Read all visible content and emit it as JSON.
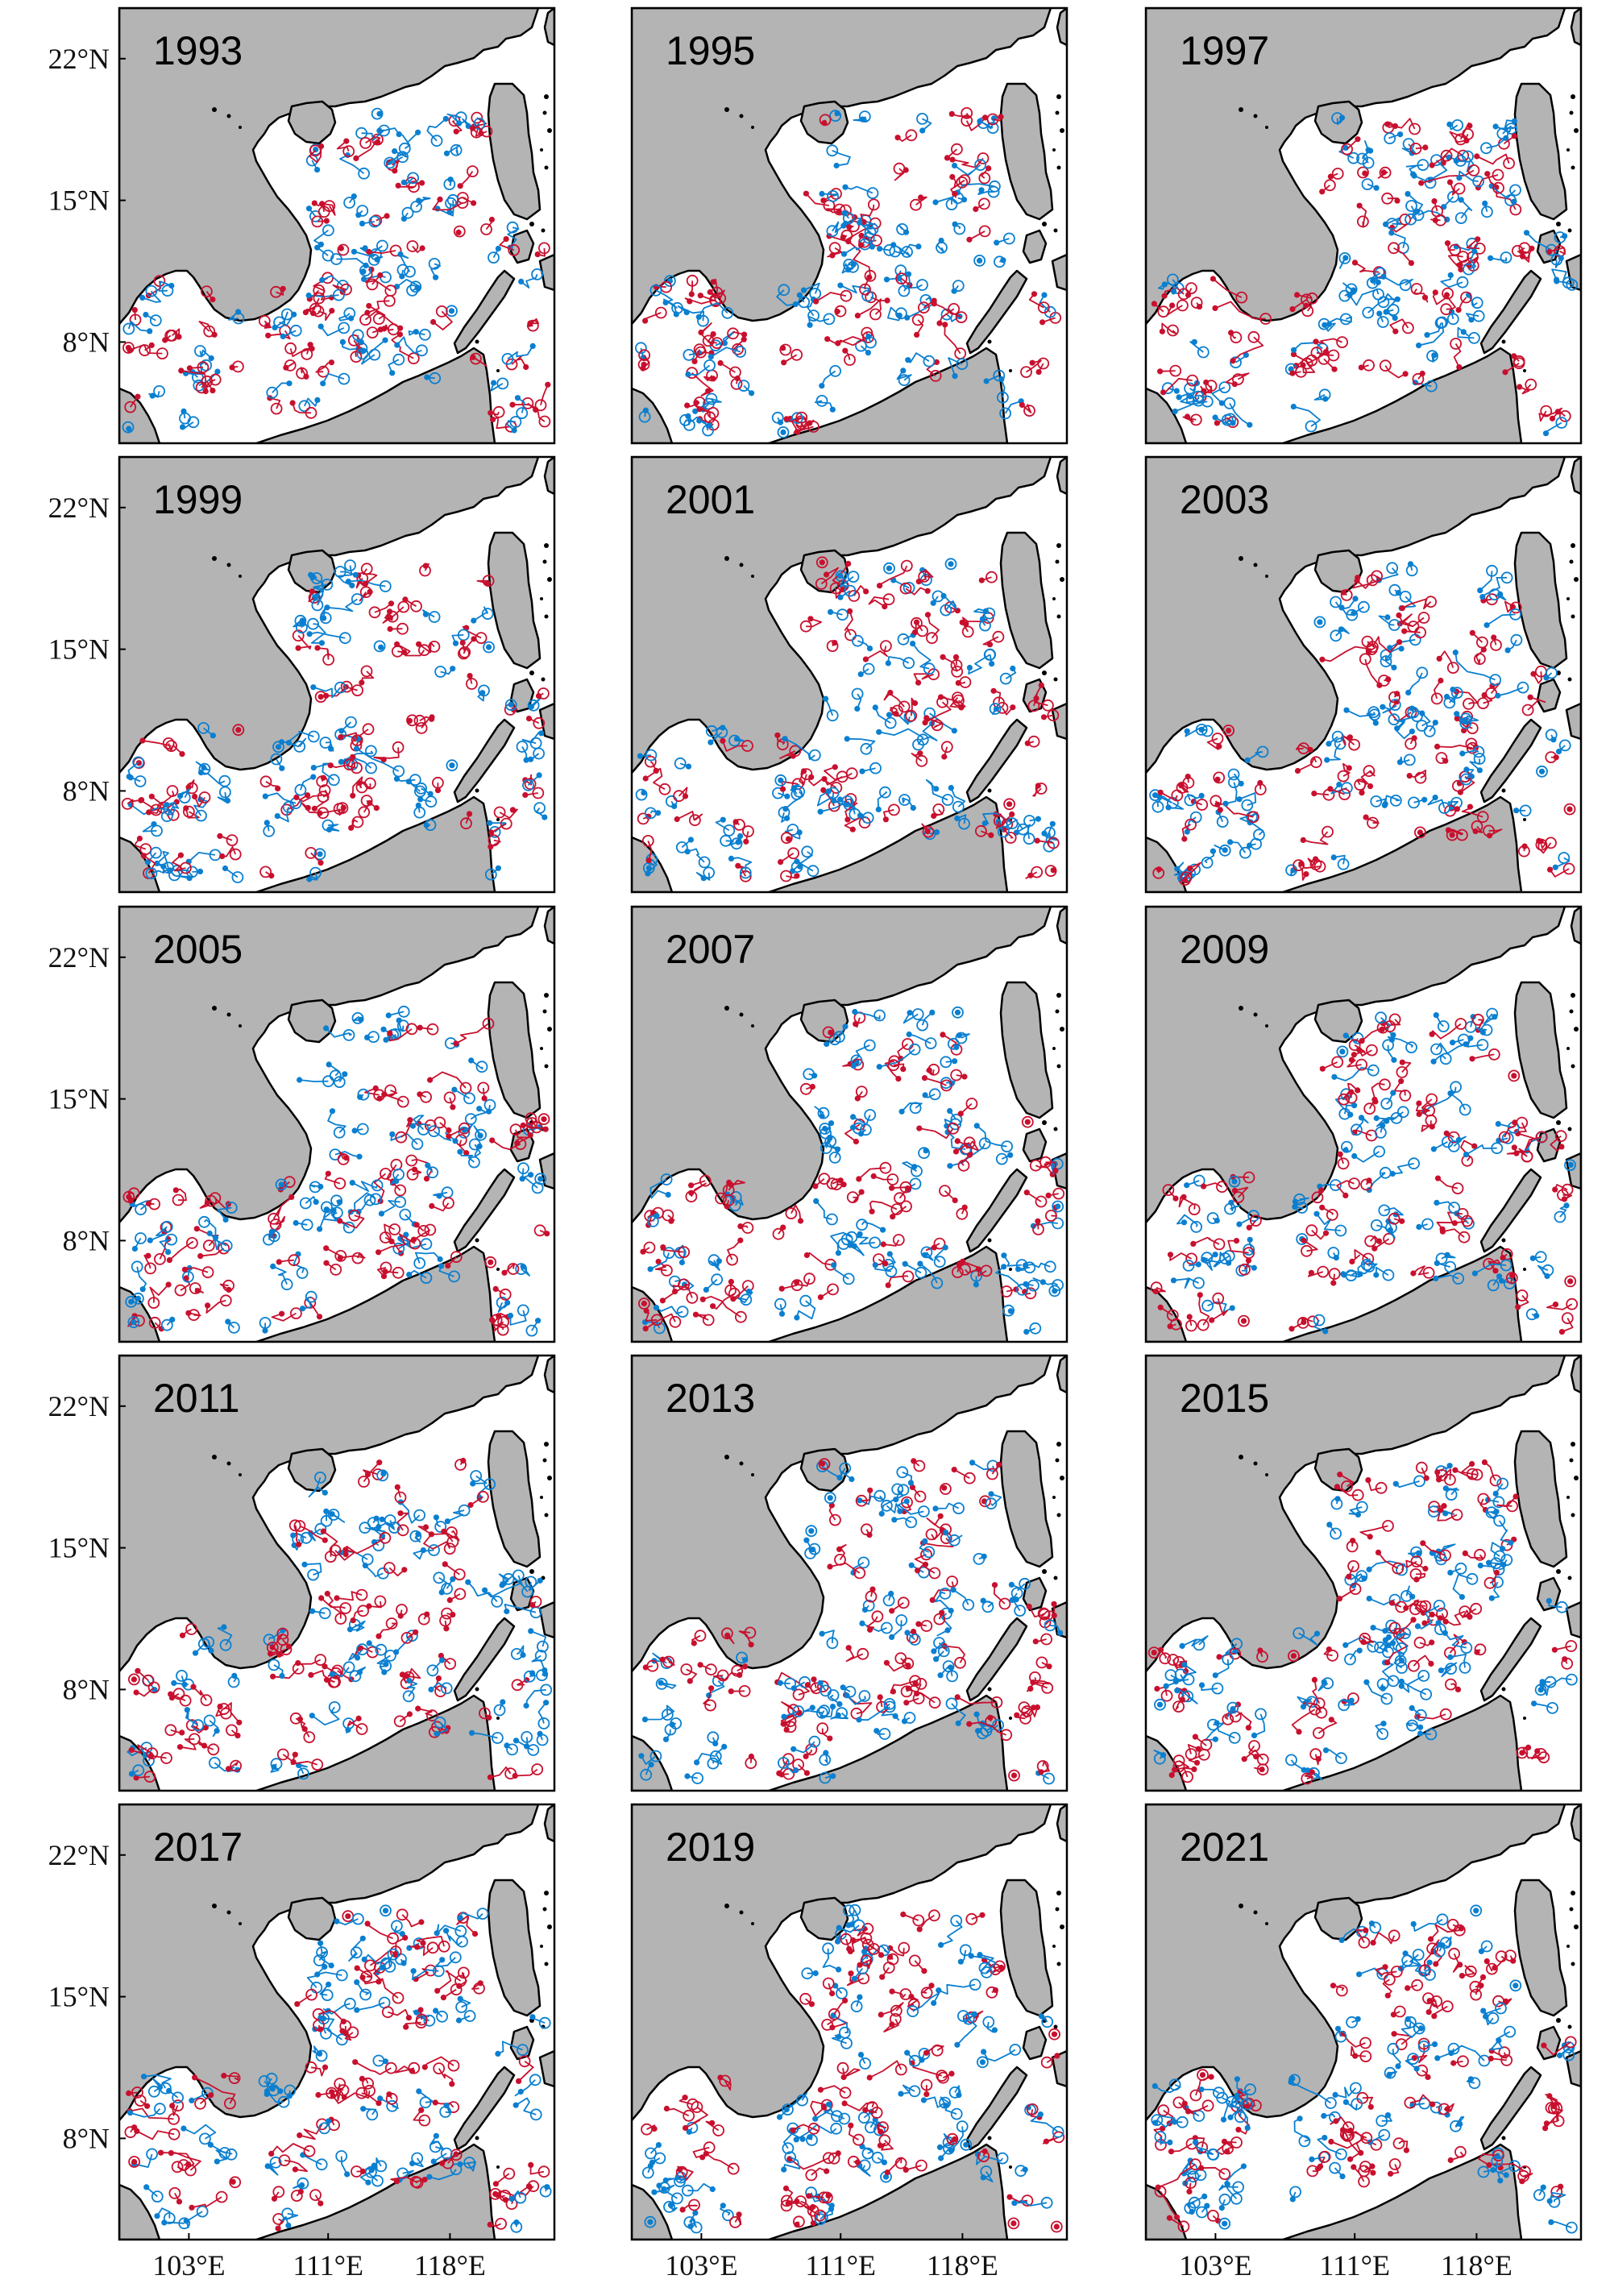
{
  "figure": {
    "y_tick_labels": [
      "22°N",
      "15°N",
      "8°N"
    ],
    "x_tick_labels": [
      "103°E",
      "111°E",
      "118°E"
    ],
    "years": [
      "1993",
      "1995",
      "1997",
      "1999",
      "2001",
      "2003",
      "2005",
      "2007",
      "2009",
      "2011",
      "2013",
      "2015",
      "2017",
      "2019",
      "2021"
    ]
  },
  "chart_data": {
    "type": "map",
    "region": "South China Sea",
    "lon_range": [
      99,
      124
    ],
    "lat_range": [
      3,
      24.5
    ],
    "x_ticks": [
      103,
      111,
      118
    ],
    "y_ticks": [
      22,
      15,
      8
    ],
    "grid": false,
    "legend": "none",
    "panel_layout": {
      "rows": 5,
      "cols": 3
    },
    "series_colors": {
      "red_tracks": "#c8102e",
      "blue_tracks": "#0a7fd0"
    },
    "land_color": "#b4b4b4",
    "ocean_color": "#ffffff"
  }
}
